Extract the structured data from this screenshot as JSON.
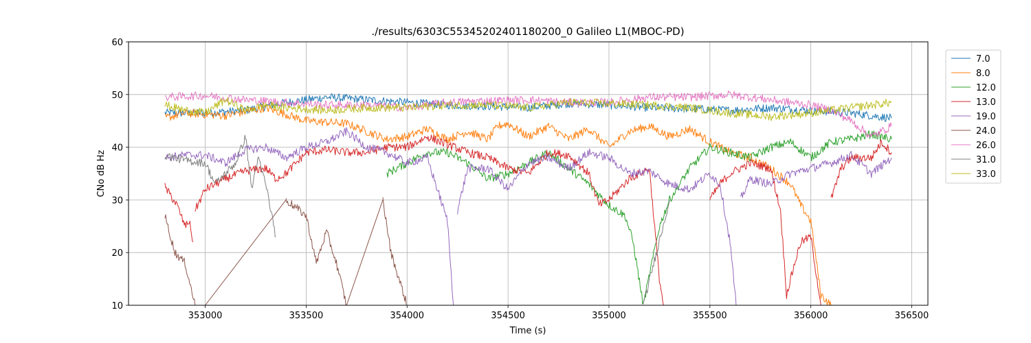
{
  "chart_data": {
    "type": "line",
    "title": "./results/6303C55345202401180200_0 Galileo L1(MBOC-PD)",
    "xlabel": "Time (s)",
    "ylabel": "CNo dB Hz",
    "xlim": [
      352620,
      356580
    ],
    "ylim": [
      10,
      60
    ],
    "xticks": [
      "353000",
      "353500",
      "354000",
      "354500",
      "355000",
      "355500",
      "356000",
      "356500"
    ],
    "yticks": [
      "10",
      "20",
      "30",
      "40",
      "50",
      "60"
    ],
    "grid": true,
    "legend_position": "upper right, outside plot",
    "series": [
      {
        "name": "7.0",
        "color": "#1f77b4",
        "segments": [
          [
            [
              352800,
              46.5
            ],
            [
              353000,
              46.5
            ],
            [
              353200,
              47
            ],
            [
              353400,
              48.5
            ],
            [
              353600,
              49.5
            ],
            [
              353800,
              49
            ],
            [
              354000,
              48.5
            ],
            [
              354200,
              48
            ],
            [
              354400,
              47.8
            ],
            [
              354600,
              47.5
            ],
            [
              354800,
              48.3
            ],
            [
              355000,
              48
            ],
            [
              355200,
              47.5
            ],
            [
              355400,
              47.3
            ],
            [
              355600,
              47
            ],
            [
              355800,
              47.5
            ],
            [
              356000,
              47
            ],
            [
              356200,
              46.5
            ],
            [
              356400,
              45.5
            ]
          ]
        ]
      },
      {
        "name": "8.0",
        "color": "#ff7f0e",
        "segments": [
          [
            [
              352800,
              45.5
            ],
            [
              352900,
              46.5
            ],
            [
              353100,
              46
            ],
            [
              353300,
              47.5
            ],
            [
              353500,
              45
            ],
            [
              353700,
              44.5
            ],
            [
              353800,
              43
            ],
            [
              353900,
              41.5
            ],
            [
              354000,
              42
            ],
            [
              354100,
              43.5
            ],
            [
              354200,
              41.5
            ],
            [
              354300,
              43
            ],
            [
              354400,
              41.5
            ],
            [
              354450,
              44
            ],
            [
              354500,
              44.5
            ],
            [
              354600,
              42
            ],
            [
              354700,
              44
            ],
            [
              354800,
              41.5
            ],
            [
              354900,
              43.5
            ],
            [
              355000,
              40
            ],
            [
              355100,
              43
            ],
            [
              355200,
              44
            ],
            [
              355300,
              42
            ],
            [
              355400,
              43.5
            ],
            [
              355500,
              41
            ],
            [
              355600,
              39
            ],
            [
              355700,
              38
            ],
            [
              355800,
              36
            ],
            [
              355900,
              33
            ],
            [
              355950,
              29
            ],
            [
              356000,
              26
            ],
            [
              356050,
              12
            ],
            [
              356100,
              10
            ]
          ]
        ]
      },
      {
        "name": "12.0",
        "color": "#2ca02c",
        "segments": [
          [
            [
              353900,
              35
            ],
            [
              354000,
              37
            ],
            [
              354100,
              39
            ],
            [
              354200,
              39
            ],
            [
              354300,
              37
            ],
            [
              354400,
              34
            ],
            [
              354500,
              35
            ],
            [
              354600,
              37
            ],
            [
              354700,
              39
            ],
            [
              354800,
              36
            ],
            [
              354900,
              33
            ],
            [
              355000,
              29
            ],
            [
              355080,
              27
            ],
            [
              355120,
              22
            ],
            [
              355170,
              10
            ],
            [
              355250,
              25
            ],
            [
              355300,
              30
            ],
            [
              355400,
              36
            ],
            [
              355500,
              40
            ],
            [
              355600,
              39
            ],
            [
              355700,
              38
            ],
            [
              355800,
              40
            ],
            [
              355900,
              41
            ],
            [
              356000,
              38
            ],
            [
              356100,
              41
            ],
            [
              356200,
              41.5
            ],
            [
              356300,
              42.5
            ],
            [
              356400,
              41.5
            ]
          ]
        ]
      },
      {
        "name": "13.0",
        "color": "#d62728",
        "segments": [
          [
            [
              352800,
              32.5
            ],
            [
              352860,
              29
            ],
            [
              352900,
              25
            ],
            [
              352920,
              26
            ],
            [
              352940,
              22
            ]
          ],
          [
            [
              352950,
              28
            ],
            [
              353000,
              32
            ],
            [
              353100,
              34
            ],
            [
              353200,
              35.5
            ],
            [
              353300,
              36
            ],
            [
              353350,
              34
            ],
            [
              353400,
              35
            ],
            [
              353500,
              39
            ],
            [
              353600,
              39.5
            ],
            [
              353700,
              39
            ],
            [
              353800,
              39
            ],
            [
              353900,
              40
            ],
            [
              354000,
              40
            ],
            [
              354100,
              42
            ],
            [
              354200,
              40.5
            ],
            [
              354300,
              39
            ],
            [
              354400,
              38
            ],
            [
              354500,
              36
            ],
            [
              354600,
              35
            ],
            [
              354700,
              39
            ],
            [
              354800,
              38.5
            ],
            [
              354900,
              35
            ],
            [
              354950,
              29
            ],
            [
              355000,
              30
            ],
            [
              355100,
              34
            ],
            [
              355200,
              36
            ],
            [
              355250,
              15
            ],
            [
              355270,
              10
            ]
          ],
          [
            [
              355500,
              30
            ],
            [
              355550,
              33
            ],
            [
              355600,
              35
            ],
            [
              355700,
              37
            ],
            [
              355800,
              36
            ],
            [
              355850,
              28
            ],
            [
              355880,
              12
            ],
            [
              355920,
              18
            ],
            [
              355950,
              22
            ],
            [
              356000,
              23
            ],
            [
              356050,
              10
            ]
          ],
          [
            [
              356100,
              30
            ],
            [
              356150,
              36
            ],
            [
              356200,
              38
            ],
            [
              356300,
              38
            ],
            [
              356350,
              41
            ],
            [
              356400,
              39
            ]
          ]
        ]
      },
      {
        "name": "19.0",
        "color": "#9467bd",
        "segments": [
          [
            [
              352800,
              38
            ],
            [
              352900,
              38.5
            ],
            [
              353000,
              38.5
            ],
            [
              353100,
              37
            ],
            [
              353200,
              39.5
            ],
            [
              353300,
              40
            ],
            [
              353400,
              38
            ],
            [
              353500,
              40
            ],
            [
              353600,
              41
            ],
            [
              353700,
              43
            ],
            [
              353800,
              40
            ],
            [
              353900,
              39
            ],
            [
              354000,
              37
            ],
            [
              354100,
              38
            ],
            [
              354150,
              32
            ],
            [
              354200,
              26
            ],
            [
              354230,
              10
            ]
          ],
          [
            [
              354250,
              28
            ],
            [
              354300,
              36
            ],
            [
              354400,
              36
            ],
            [
              354500,
              32
            ],
            [
              354600,
              37
            ],
            [
              354700,
              38
            ],
            [
              354800,
              36
            ],
            [
              354900,
              39
            ],
            [
              355000,
              38
            ],
            [
              355100,
              35
            ],
            [
              355200,
              35.5
            ],
            [
              355300,
              33
            ],
            [
              355400,
              32
            ],
            [
              355500,
              35
            ],
            [
              355550,
              33
            ],
            [
              355600,
              22
            ],
            [
              355630,
              10
            ]
          ],
          [
            [
              355650,
              30
            ],
            [
              355700,
              34
            ],
            [
              355800,
              33
            ],
            [
              355900,
              35
            ],
            [
              356000,
              36
            ],
            [
              356100,
              37
            ],
            [
              356200,
              38.5
            ],
            [
              356300,
              35
            ],
            [
              356400,
              38
            ]
          ]
        ]
      },
      {
        "name": "24.0",
        "color": "#8c564b",
        "segments": [
          [
            [
              352800,
              27
            ],
            [
              352850,
              20
            ],
            [
              352900,
              18
            ],
            [
              352950,
              10
            ]
          ],
          [
            [
              353000,
              10
            ],
            [
              353400,
              30
            ]
          ],
          [
            [
              353400,
              30
            ],
            [
              353500,
              27
            ],
            [
              353550,
              18
            ],
            [
              353600,
              24
            ],
            [
              353650,
              18
            ],
            [
              353700,
              10
            ]
          ],
          [
            [
              353700,
              10
            ],
            [
              353880,
              30
            ]
          ],
          [
            [
              353880,
              30
            ],
            [
              353920,
              20
            ],
            [
              354000,
              10
            ]
          ]
        ]
      },
      {
        "name": "26.0",
        "color": "#e377c2",
        "segments": [
          [
            [
              352800,
              49.5
            ],
            [
              353000,
              49.8
            ],
            [
              353200,
              49
            ],
            [
              353400,
              48.5
            ],
            [
              353600,
              48
            ],
            [
              353800,
              48
            ],
            [
              354000,
              47.5
            ],
            [
              354200,
              48.5
            ],
            [
              354400,
              48.8
            ],
            [
              354600,
              49
            ],
            [
              354800,
              48.5
            ],
            [
              355000,
              48.5
            ],
            [
              355200,
              49.5
            ],
            [
              355400,
              49.5
            ],
            [
              355600,
              50
            ],
            [
              355800,
              49
            ],
            [
              356000,
              48
            ],
            [
              356100,
              47
            ],
            [
              356200,
              45
            ],
            [
              356300,
              42
            ],
            [
              356400,
              44
            ]
          ]
        ]
      },
      {
        "name": "31.0",
        "color": "#7f7f7f",
        "segments": [
          [
            [
              352800,
              38.5
            ],
            [
              352900,
              37.5
            ],
            [
              353000,
              37
            ],
            [
              353050,
              33
            ],
            [
              353100,
              35
            ],
            [
              353150,
              37
            ],
            [
              353200,
              42
            ],
            [
              353230,
              32
            ],
            [
              353260,
              38
            ],
            [
              353300,
              33
            ],
            [
              353350,
              23
            ]
          ],
          [
            [
              355170,
              10
            ],
            [
              355300,
              30
            ]
          ]
        ]
      },
      {
        "name": "33.0",
        "color": "#bcbd22",
        "segments": [
          [
            [
              352800,
              48
            ],
            [
              352900,
              47
            ],
            [
              353000,
              46.5
            ],
            [
              353100,
              49
            ],
            [
              353200,
              47
            ],
            [
              353300,
              48
            ],
            [
              353400,
              47.5
            ],
            [
              353600,
              47
            ],
            [
              353800,
              47.5
            ],
            [
              354000,
              47.5
            ],
            [
              354200,
              48
            ],
            [
              354400,
              48
            ],
            [
              354600,
              47.5
            ],
            [
              354800,
              48.5
            ],
            [
              355000,
              48.3
            ],
            [
              355200,
              48
            ],
            [
              355400,
              47.5
            ],
            [
              355600,
              46.5
            ],
            [
              355800,
              45.8
            ],
            [
              356000,
              46.5
            ],
            [
              356200,
              47.5
            ],
            [
              356400,
              48.5
            ]
          ]
        ]
      }
    ]
  }
}
